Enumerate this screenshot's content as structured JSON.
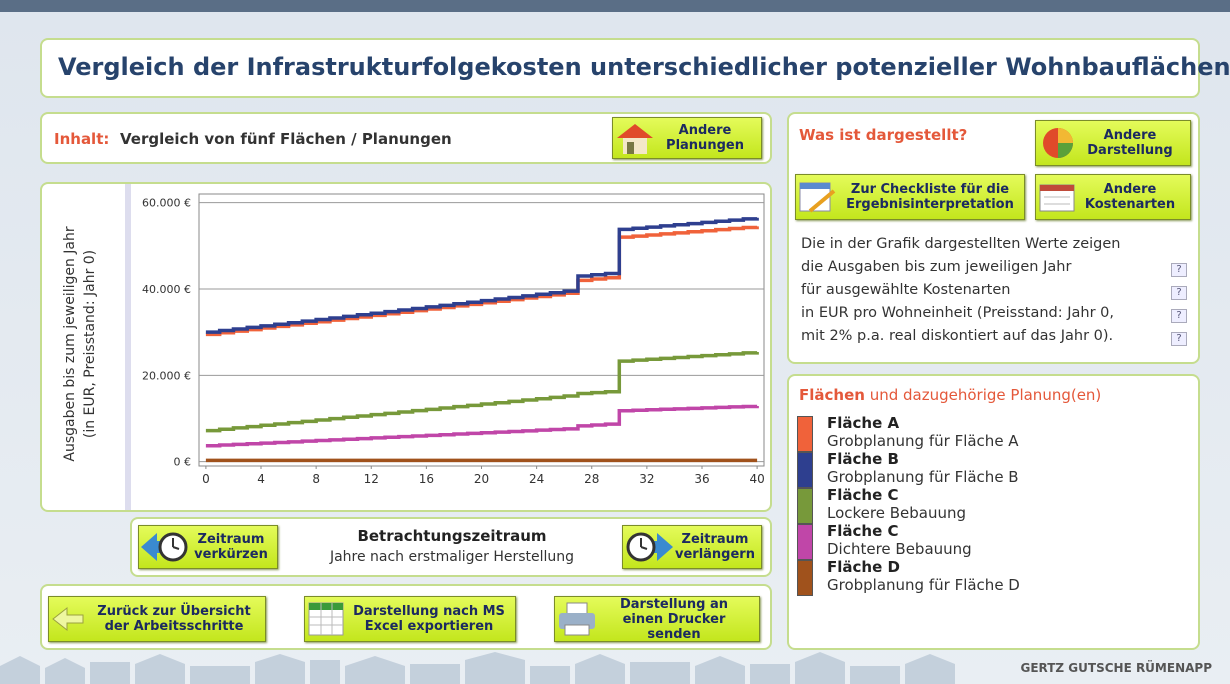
{
  "header": {
    "title": "Vergleich der Infrastrukturfolgekosten unterschiedlicher potenzieller Wohnbauflächen"
  },
  "content": {
    "label": "Inhalt:",
    "text": "Vergleich von fünf Flächen / Planungen",
    "button": "Andere Planungen"
  },
  "chart": {
    "type": "line",
    "step": true,
    "grid": true,
    "y_label": [
      "Ausgaben bis zum jeweiligen Jahr",
      "(in EUR, Preisstand: Jahr 0)"
    ],
    "x": [
      0,
      1,
      2,
      3,
      4,
      5,
      6,
      7,
      8,
      9,
      10,
      11,
      12,
      13,
      14,
      15,
      16,
      17,
      18,
      19,
      20,
      21,
      22,
      23,
      24,
      25,
      26,
      27,
      28,
      29,
      30,
      31,
      32,
      33,
      34,
      35,
      36,
      37,
      38,
      39,
      40
    ],
    "xlim": [
      -0.5,
      40.5
    ],
    "xticks": [
      0,
      4,
      8,
      12,
      16,
      20,
      24,
      28,
      32,
      36,
      40
    ],
    "ylim": [
      -1000,
      62000
    ],
    "yticks": [
      {
        "value": 0,
        "label": "0 €"
      },
      {
        "value": 20000,
        "label": "20.000 €"
      },
      {
        "value": 40000,
        "label": "40.000 €"
      },
      {
        "value": 60000,
        "label": "60.000 €"
      }
    ],
    "series": [
      {
        "name": "Fläche A",
        "subtitle": "Grobplanung für Fläche A",
        "color": "#f0623a",
        "values": [
          29500,
          29870,
          30230,
          30600,
          30960,
          31330,
          31690,
          32060,
          32420,
          32790,
          33150,
          33520,
          33880,
          34250,
          34620,
          34980,
          35350,
          35710,
          36080,
          36440,
          36810,
          37170,
          37540,
          37900,
          38270,
          38630,
          39000,
          42000,
          42300,
          42600,
          52000,
          52250,
          52500,
          52750,
          53000,
          53250,
          53500,
          53750,
          54000,
          54250,
          54500
        ]
      },
      {
        "name": "Fläche B",
        "subtitle": "Grobplanung für Fläche B",
        "color": "#2e3f8f",
        "values": [
          30000,
          30370,
          30730,
          31100,
          31460,
          31830,
          32190,
          32560,
          32920,
          33290,
          33650,
          34020,
          34380,
          34750,
          35120,
          35480,
          35850,
          36210,
          36580,
          36940,
          37310,
          37670,
          38040,
          38400,
          38770,
          39130,
          39500,
          43000,
          43300,
          43600,
          53800,
          54070,
          54340,
          54610,
          54880,
          55150,
          55420,
          55690,
          55960,
          56230,
          56500
        ]
      },
      {
        "name": "Fläche C",
        "subtitle": "Lockere Bebauung",
        "color": "#77993a",
        "values": [
          7200,
          7510,
          7820,
          8120,
          8430,
          8740,
          9050,
          9350,
          9660,
          9970,
          10280,
          10580,
          10890,
          11200,
          11510,
          11820,
          12120,
          12430,
          12740,
          13050,
          13350,
          13660,
          13970,
          14280,
          14580,
          14890,
          15200,
          15800,
          16000,
          16200,
          23300,
          23510,
          23720,
          23930,
          24140,
          24350,
          24560,
          24770,
          24980,
          25190,
          25400
        ]
      },
      {
        "name": "Fläche C",
        "subtitle": "Dichtere Bebauung",
        "color": "#c046a8",
        "values": [
          3700,
          3850,
          4000,
          4150,
          4300,
          4450,
          4600,
          4750,
          4900,
          5050,
          5200,
          5350,
          5500,
          5650,
          5800,
          5950,
          6100,
          6250,
          6400,
          6550,
          6700,
          6850,
          7000,
          7150,
          7300,
          7450,
          7600,
          8300,
          8500,
          8700,
          11800,
          11910,
          12020,
          12130,
          12240,
          12350,
          12460,
          12570,
          12680,
          12790,
          12900
        ]
      },
      {
        "name": "Fläche D",
        "subtitle": "Grobplanung für Fläche D",
        "color": "#a0521c",
        "values": [
          300,
          300,
          300,
          300,
          300,
          300,
          300,
          300,
          300,
          300,
          300,
          300,
          300,
          300,
          300,
          300,
          300,
          300,
          300,
          300,
          300,
          300,
          300,
          300,
          300,
          300,
          300,
          300,
          300,
          300,
          300,
          300,
          300,
          300,
          300,
          300,
          300,
          300,
          300,
          300,
          300
        ]
      }
    ]
  },
  "period": {
    "title": "Betrachtungszeitraum",
    "subtitle": "Jahre nach erstmaliger Herstellung",
    "shorten": "Zeitraum verkürzen",
    "extend": "Zeitraum verlängern"
  },
  "actions": [
    "Zurück zur Übersicht der Arbeitsschritte",
    "Darstellung nach MS Excel exportieren",
    "Darstellung an einen Drucker senden"
  ],
  "info": {
    "title": "Was ist dargestellt?",
    "other_view": "Andere Darstellung",
    "checklist": "Zur Checkliste für die Ergebnisinterpretation",
    "other_costs": "Andere Kostenarten",
    "lines": [
      "Die in der Grafik dargestellten Werte zeigen",
      "die Ausgaben bis zum jeweiligen Jahr",
      "für ausgewählte Kostenarten",
      "in EUR pro Wohneinheit (Preisstand: Jahr 0,",
      "mit 2% p.a. real diskontiert auf das Jahr 0)."
    ],
    "help_icon": "?"
  },
  "legend_panel": {
    "title_bold": "Flächen",
    "title_rest": "und dazugehörige Planung(en)"
  },
  "footer": "GERTZ GUTSCHE RÜMENAPP"
}
